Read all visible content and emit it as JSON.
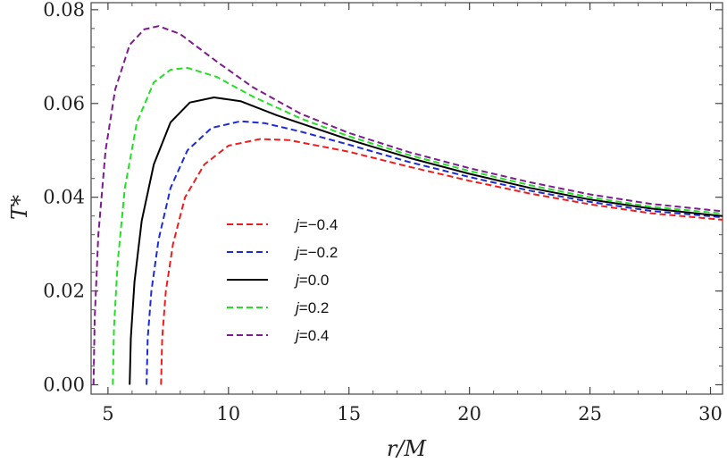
{
  "chart_data": {
    "type": "line",
    "title": "",
    "xlabel": "r/M",
    "ylabel": "T*",
    "xlim": [
      4.3,
      30.5
    ],
    "ylim": [
      -0.002,
      0.0815
    ],
    "x_ticks": [
      5,
      10,
      15,
      20,
      25,
      30
    ],
    "x_tick_labels": [
      "5",
      "10",
      "15",
      "20",
      "25",
      "30"
    ],
    "y_ticks": [
      0.0,
      0.02,
      0.04,
      0.06,
      0.08
    ],
    "y_tick_labels": [
      "0.00",
      "0.02",
      "0.04",
      "0.06",
      "0.08"
    ],
    "grid": false,
    "legend_position": "center-left",
    "series": [
      {
        "name": "j=−0.4",
        "color": "#ee1c1c",
        "dash": "dashed",
        "points": [
          [
            7.2,
            0.0
          ],
          [
            7.25,
            0.01
          ],
          [
            7.4,
            0.02
          ],
          [
            7.7,
            0.03
          ],
          [
            8.2,
            0.04
          ],
          [
            9.0,
            0.047
          ],
          [
            10.0,
            0.051
          ],
          [
            11.3,
            0.0524
          ],
          [
            12.5,
            0.0522
          ],
          [
            15,
            0.0497
          ],
          [
            17.5,
            0.0465
          ],
          [
            20,
            0.0435
          ],
          [
            22.5,
            0.0408
          ],
          [
            25,
            0.0385
          ],
          [
            27.5,
            0.0366
          ],
          [
            30.5,
            0.0352
          ]
        ]
      },
      {
        "name": "j=−0.2",
        "color": "#1c2bd6",
        "dash": "dashed",
        "points": [
          [
            6.6,
            0.0
          ],
          [
            6.65,
            0.01
          ],
          [
            6.8,
            0.02
          ],
          [
            7.1,
            0.031
          ],
          [
            7.6,
            0.042
          ],
          [
            8.3,
            0.05
          ],
          [
            9.3,
            0.0548
          ],
          [
            10.5,
            0.0562
          ],
          [
            11.5,
            0.0558
          ],
          [
            13,
            0.054
          ],
          [
            15,
            0.0512
          ],
          [
            17.5,
            0.0475
          ],
          [
            20,
            0.0443
          ],
          [
            22.5,
            0.0414
          ],
          [
            25,
            0.039
          ],
          [
            27.5,
            0.0371
          ],
          [
            30.5,
            0.0357
          ]
        ]
      },
      {
        "name": "j=0.0",
        "color": "#000000",
        "dash": "solid",
        "points": [
          [
            5.9,
            0.0
          ],
          [
            5.95,
            0.01
          ],
          [
            6.1,
            0.022
          ],
          [
            6.4,
            0.035
          ],
          [
            6.9,
            0.047
          ],
          [
            7.6,
            0.056
          ],
          [
            8.4,
            0.0602
          ],
          [
            9.4,
            0.0613
          ],
          [
            10.5,
            0.0605
          ],
          [
            12,
            0.0575
          ],
          [
            15,
            0.0523
          ],
          [
            17.5,
            0.0484
          ],
          [
            20,
            0.045
          ],
          [
            22.5,
            0.042
          ],
          [
            25,
            0.0395
          ],
          [
            27.5,
            0.0376
          ],
          [
            30.5,
            0.036
          ]
        ]
      },
      {
        "name": "j=0.2",
        "color": "#22e022",
        "dash": "dashed",
        "points": [
          [
            5.2,
            0.0
          ],
          [
            5.25,
            0.012
          ],
          [
            5.4,
            0.026
          ],
          [
            5.7,
            0.042
          ],
          [
            6.2,
            0.056
          ],
          [
            6.9,
            0.0645
          ],
          [
            7.6,
            0.0672
          ],
          [
            8.3,
            0.0676
          ],
          [
            9.5,
            0.0657
          ],
          [
            11,
            0.0615
          ],
          [
            13,
            0.0568
          ],
          [
            15,
            0.053
          ],
          [
            17.5,
            0.049
          ],
          [
            20,
            0.0456
          ],
          [
            22.5,
            0.0426
          ],
          [
            25,
            0.04
          ],
          [
            27.5,
            0.038
          ],
          [
            30.5,
            0.0365
          ]
        ]
      },
      {
        "name": "j=0.4",
        "color": "#7d1a8e",
        "dash": "dashed",
        "points": [
          [
            4.4,
            0.0
          ],
          [
            4.45,
            0.014
          ],
          [
            4.6,
            0.032
          ],
          [
            4.9,
            0.05
          ],
          [
            5.3,
            0.063
          ],
          [
            5.9,
            0.0725
          ],
          [
            6.5,
            0.0758
          ],
          [
            7.1,
            0.0765
          ],
          [
            8.0,
            0.0748
          ],
          [
            9.5,
            0.069
          ],
          [
            11,
            0.0635
          ],
          [
            13,
            0.0578
          ],
          [
            15,
            0.0537
          ],
          [
            17.5,
            0.0496
          ],
          [
            20,
            0.0462
          ],
          [
            22.5,
            0.0432
          ],
          [
            25,
            0.0406
          ],
          [
            27.5,
            0.0386
          ],
          [
            30.5,
            0.037
          ]
        ]
      }
    ]
  }
}
